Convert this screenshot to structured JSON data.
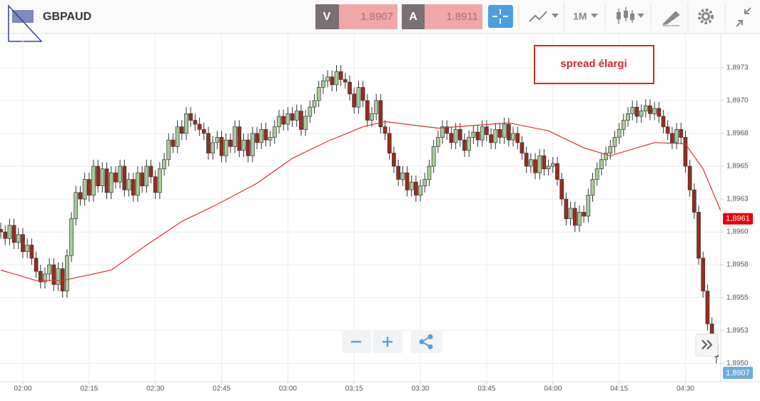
{
  "header": {
    "symbol": "GBPAUD",
    "bid_label": "V",
    "bid": "1.8907",
    "ask_label": "A",
    "ask": "1.8911",
    "timeframe": "1M"
  },
  "annotation": "spread élargi",
  "bid_tag_label": "1,8907",
  "chart_data": {
    "type": "candlestick",
    "x": [
      115,
      116,
      117,
      118,
      119,
      120,
      121,
      122,
      123,
      124,
      125,
      126,
      127,
      128,
      129,
      130,
      131,
      132,
      133,
      134,
      135,
      136,
      137,
      138,
      139,
      140,
      141,
      142,
      143,
      144,
      145,
      146,
      147,
      148,
      149,
      150,
      151,
      152,
      153,
      154,
      155,
      156,
      157,
      158,
      159,
      160,
      161,
      162,
      163,
      164,
      165,
      166,
      167,
      168,
      169,
      170,
      171,
      172,
      173,
      174,
      175,
      176,
      177,
      178,
      179,
      180,
      181,
      182,
      183,
      184,
      185,
      186,
      187,
      188,
      189,
      190,
      191,
      192,
      193,
      194,
      195,
      196,
      197,
      198,
      199,
      200,
      201,
      202,
      203,
      204,
      205,
      206,
      207,
      208,
      209,
      210,
      211,
      212,
      213,
      214,
      215,
      216,
      217,
      218,
      219,
      220,
      221,
      222,
      223,
      224,
      225,
      226,
      227,
      228,
      229,
      230,
      231,
      232,
      233,
      234,
      235,
      236,
      237,
      238,
      239,
      240,
      241,
      242,
      243,
      244,
      245,
      246,
      247,
      248,
      249,
      250,
      251,
      252,
      253,
      254,
      255,
      256,
      257,
      258,
      259,
      260,
      261,
      262,
      263,
      264,
      265,
      266,
      267,
      268,
      269,
      270,
      271,
      272,
      273,
      274,
      275,
      276,
      277
    ],
    "open": [
      1.89602,
      1.896,
      1.89595,
      1.89605,
      1.89592,
      1.89598,
      1.89585,
      1.8959,
      1.8958,
      1.8957,
      1.89562,
      1.89568,
      1.89575,
      1.8956,
      1.89572,
      1.89555,
      1.89582,
      1.8961,
      1.8963,
      1.89625,
      1.8964,
      1.89628,
      1.8965,
      1.89635,
      1.89648,
      1.8963,
      1.89645,
      1.89638,
      1.8965,
      1.89632,
      1.8964,
      1.89628,
      1.89645,
      1.89635,
      1.8965,
      1.89642,
      1.8963,
      1.89648,
      1.89655,
      1.8967,
      1.89665,
      1.8968,
      1.89675,
      1.8969,
      1.89685,
      1.89682,
      1.89678,
      1.89675,
      1.8966,
      1.89668,
      1.89672,
      1.89658,
      1.8967,
      1.89665,
      1.8968,
      1.89662,
      1.8967,
      1.89658,
      1.89675,
      1.89668,
      1.89678,
      1.8967,
      1.89672,
      1.8968,
      1.89688,
      1.89682,
      1.8969,
      1.89685,
      1.89692,
      1.89678,
      1.89688,
      1.89695,
      1.897,
      1.8971,
      1.89715,
      1.89718,
      1.89712,
      1.89722,
      1.89716,
      1.89714,
      1.89705,
      1.89695,
      1.8971,
      1.897,
      1.89685,
      1.8969,
      1.897,
      1.8968,
      1.89675,
      1.8966,
      1.8965,
      1.8964,
      1.89645,
      1.89632,
      1.89638,
      1.89628,
      1.89635,
      1.8964,
      1.8965,
      1.89665,
      1.89672,
      1.8968,
      1.89675,
      1.89668,
      1.89678,
      1.8967,
      1.89662,
      1.89672,
      1.89676,
      1.8967,
      1.8968,
      1.89674,
      1.89668,
      1.89678,
      1.89672,
      1.89682,
      1.8967,
      1.89675,
      1.89668,
      1.8966,
      1.8965,
      1.89655,
      1.89645,
      1.89658,
      1.89648,
      1.8965,
      1.89652,
      1.8964,
      1.89625,
      1.8961,
      1.89618,
      1.89605,
      1.89615,
      1.89612,
      1.89628,
      1.8964,
      1.89648,
      1.89655,
      1.8966,
      1.89665,
      1.89672,
      1.89678,
      1.89685,
      1.8969,
      1.89695,
      1.89688,
      1.89692,
      1.89696,
      1.8969,
      1.89694,
      1.89688,
      1.8968,
      1.89675,
      1.89668,
      1.89678,
      1.89672,
      1.8965,
      1.89632,
      1.89615,
      1.8958,
      1.89555,
      1.8953,
      1.89515
    ],
    "high": [
      1.89607,
      1.89605,
      1.8961,
      1.8961,
      1.89603,
      1.89603,
      1.89595,
      1.89595,
      1.89585,
      1.89575,
      1.89573,
      1.8958,
      1.8958,
      1.89577,
      1.89577,
      1.89587,
      1.89615,
      1.89635,
      1.89635,
      1.89645,
      1.89645,
      1.89655,
      1.89655,
      1.89653,
      1.89653,
      1.8965,
      1.8965,
      1.89655,
      1.89655,
      1.89645,
      1.89645,
      1.8965,
      1.8965,
      1.89655,
      1.89655,
      1.89647,
      1.89653,
      1.8966,
      1.89675,
      1.89675,
      1.89685,
      1.89685,
      1.89695,
      1.89695,
      1.8969,
      1.89687,
      1.89683,
      1.8968,
      1.89673,
      1.89677,
      1.89677,
      1.89675,
      1.89675,
      1.89685,
      1.89685,
      1.89675,
      1.89675,
      1.8968,
      1.8968,
      1.89683,
      1.89683,
      1.89677,
      1.89685,
      1.89693,
      1.89693,
      1.89695,
      1.89695,
      1.89697,
      1.89697,
      1.89693,
      1.897,
      1.89705,
      1.89715,
      1.8972,
      1.89723,
      1.89723,
      1.89727,
      1.89727,
      1.89721,
      1.89719,
      1.8971,
      1.89715,
      1.89715,
      1.89705,
      1.89695,
      1.89705,
      1.89705,
      1.89685,
      1.8968,
      1.89665,
      1.89655,
      1.8965,
      1.8965,
      1.89643,
      1.89643,
      1.8964,
      1.89645,
      1.89655,
      1.8967,
      1.89677,
      1.89685,
      1.89685,
      1.8968,
      1.89683,
      1.89683,
      1.89675,
      1.89677,
      1.89681,
      1.89681,
      1.89685,
      1.89685,
      1.89679,
      1.89683,
      1.89683,
      1.89687,
      1.89687,
      1.8968,
      1.8968,
      1.89673,
      1.89665,
      1.8966,
      1.8966,
      1.89663,
      1.89663,
      1.89655,
      1.89657,
      1.89657,
      1.89645,
      1.8963,
      1.89623,
      1.89623,
      1.8962,
      1.8962,
      1.89633,
      1.89645,
      1.89653,
      1.8966,
      1.89665,
      1.8967,
      1.89677,
      1.89683,
      1.8969,
      1.89695,
      1.897,
      1.897,
      1.89697,
      1.89701,
      1.89701,
      1.89699,
      1.89699,
      1.89693,
      1.89685,
      1.8968,
      1.89683,
      1.89683,
      1.89677,
      1.89655,
      1.89637,
      1.8962,
      1.89585,
      1.8956,
      1.89535,
      1.8952
    ],
    "low": [
      1.89595,
      1.8959,
      1.8959,
      1.89587,
      1.89587,
      1.8958,
      1.8958,
      1.89575,
      1.89565,
      1.89557,
      1.89557,
      1.89563,
      1.89555,
      1.89555,
      1.8955,
      1.8955,
      1.89577,
      1.89605,
      1.8962,
      1.8962,
      1.89623,
      1.89623,
      1.8963,
      1.8963,
      1.89625,
      1.89625,
      1.89633,
      1.89633,
      1.89627,
      1.89627,
      1.89623,
      1.89623,
      1.8963,
      1.8963,
      1.89637,
      1.89625,
      1.89625,
      1.89643,
      1.8965,
      1.8966,
      1.8966,
      1.8967,
      1.8967,
      1.8968,
      1.89677,
      1.89673,
      1.8967,
      1.89655,
      1.89655,
      1.89663,
      1.89653,
      1.89653,
      1.8966,
      1.8966,
      1.89657,
      1.89657,
      1.89653,
      1.89653,
      1.89663,
      1.89663,
      1.89665,
      1.89665,
      1.89667,
      1.89675,
      1.89677,
      1.89677,
      1.8968,
      1.8968,
      1.89673,
      1.89673,
      1.89683,
      1.8969,
      1.89695,
      1.89705,
      1.8971,
      1.89707,
      1.89707,
      1.89711,
      1.89709,
      1.897,
      1.8969,
      1.8969,
      1.89695,
      1.8968,
      1.8968,
      1.89685,
      1.89675,
      1.8967,
      1.89655,
      1.89645,
      1.89635,
      1.89635,
      1.89627,
      1.89627,
      1.89623,
      1.89623,
      1.8963,
      1.89635,
      1.89645,
      1.8966,
      1.89667,
      1.8967,
      1.89663,
      1.89663,
      1.89665,
      1.89657,
      1.89657,
      1.89667,
      1.89665,
      1.89665,
      1.89669,
      1.89663,
      1.89663,
      1.89667,
      1.89667,
      1.89665,
      1.89665,
      1.89663,
      1.89655,
      1.89645,
      1.89645,
      1.8964,
      1.8964,
      1.89643,
      1.89643,
      1.89645,
      1.89635,
      1.8962,
      1.89605,
      1.89605,
      1.896,
      1.896,
      1.89607,
      1.89607,
      1.89623,
      1.89635,
      1.89643,
      1.8965,
      1.89655,
      1.8966,
      1.89667,
      1.89673,
      1.8968,
      1.89685,
      1.89683,
      1.89683,
      1.89687,
      1.89685,
      1.89685,
      1.89683,
      1.89675,
      1.8967,
      1.89663,
      1.89663,
      1.89667,
      1.89645,
      1.89627,
      1.8961,
      1.89575,
      1.8955,
      1.89525,
      1.8951,
      1.895
    ],
    "close": [
      1.896,
      1.89595,
      1.89605,
      1.89592,
      1.89598,
      1.89585,
      1.8959,
      1.8958,
      1.8957,
      1.89562,
      1.89568,
      1.89575,
      1.8956,
      1.89572,
      1.89555,
      1.89582,
      1.8961,
      1.8963,
      1.89625,
      1.8964,
      1.89628,
      1.8965,
      1.89635,
      1.89648,
      1.8963,
      1.89645,
      1.89638,
      1.8965,
      1.89632,
      1.8964,
      1.89628,
      1.89645,
      1.89635,
      1.8965,
      1.89642,
      1.8963,
      1.89648,
      1.89655,
      1.8967,
      1.89665,
      1.8968,
      1.89675,
      1.8969,
      1.89685,
      1.89682,
      1.89678,
      1.89675,
      1.8966,
      1.89668,
      1.89672,
      1.89658,
      1.8967,
      1.89665,
      1.8968,
      1.89662,
      1.8967,
      1.89658,
      1.89675,
      1.89668,
      1.89678,
      1.8967,
      1.89672,
      1.8968,
      1.89688,
      1.89682,
      1.8969,
      1.89685,
      1.89692,
      1.89678,
      1.89688,
      1.89695,
      1.897,
      1.8971,
      1.89715,
      1.89718,
      1.89712,
      1.89722,
      1.89716,
      1.89714,
      1.89705,
      1.89695,
      1.8971,
      1.897,
      1.89685,
      1.8969,
      1.897,
      1.8968,
      1.89675,
      1.8966,
      1.8965,
      1.8964,
      1.89645,
      1.89632,
      1.89638,
      1.89628,
      1.89635,
      1.8964,
      1.8965,
      1.89665,
      1.89672,
      1.8968,
      1.89675,
      1.89668,
      1.89678,
      1.8967,
      1.89662,
      1.89672,
      1.89676,
      1.8967,
      1.8968,
      1.89674,
      1.89668,
      1.89678,
      1.89672,
      1.89682,
      1.8967,
      1.89675,
      1.89668,
      1.8966,
      1.8965,
      1.89655,
      1.89645,
      1.89658,
      1.89648,
      1.8965,
      1.89652,
      1.8964,
      1.89625,
      1.8961,
      1.89618,
      1.89605,
      1.89615,
      1.89612,
      1.89628,
      1.8964,
      1.89648,
      1.89655,
      1.8966,
      1.89665,
      1.89672,
      1.89678,
      1.89685,
      1.8969,
      1.89695,
      1.89688,
      1.89692,
      1.89696,
      1.8969,
      1.89694,
      1.89688,
      1.8968,
      1.89675,
      1.89668,
      1.89678,
      1.89672,
      1.8965,
      1.89632,
      1.89615,
      1.8958,
      1.89555,
      1.8953,
      1.89515,
      1.89505
    ],
    "up_color": "#a8cc98",
    "down_color": "#9a2b1c",
    "moving_average": {
      "color": "#d9312b",
      "x": [
        115,
        123,
        129,
        140,
        148,
        156,
        164,
        173,
        181,
        189,
        197,
        202,
        214,
        222,
        230,
        239,
        247,
        253,
        263,
        270,
        274,
        278
      ],
      "values": [
        1.89571,
        1.89563,
        1.89563,
        1.89571,
        1.8959,
        1.89608,
        1.89621,
        1.89637,
        1.89656,
        1.89669,
        1.8968,
        1.89684,
        1.89679,
        1.89681,
        1.89683,
        1.89677,
        1.89664,
        1.89658,
        1.89668,
        1.89667,
        1.89648,
        1.89616
      ]
    },
    "xlim": [
      114.83,
      278
    ],
    "xticks": [
      {
        "value": 120,
        "label": "02:00"
      },
      {
        "value": 135,
        "label": "02:15"
      },
      {
        "value": 150,
        "label": "02:30"
      },
      {
        "value": 165,
        "label": "02:45"
      },
      {
        "value": 180,
        "label": "03:00"
      },
      {
        "value": 195,
        "label": "03:15"
      },
      {
        "value": 210,
        "label": "03:30"
      },
      {
        "value": 225,
        "label": "03:45"
      },
      {
        "value": 240,
        "label": "04:00"
      },
      {
        "value": 255,
        "label": "04:15"
      },
      {
        "value": 270,
        "label": "04:30"
      }
    ],
    "ylim": [
      1.89486,
      1.89751
    ],
    "yticks": [
      {
        "value": 1.895,
        "label": "1,8950"
      },
      {
        "value": 1.89525,
        "label": "1,8953"
      },
      {
        "value": 1.8955,
        "label": "1,8955"
      },
      {
        "value": 1.89575,
        "label": "1,8958"
      },
      {
        "value": 1.896,
        "label": "1,8960"
      },
      {
        "value": 1.89625,
        "label": "1,8963"
      },
      {
        "value": 1.8965,
        "label": "1,8965"
      },
      {
        "value": 1.89675,
        "label": "1,8968"
      },
      {
        "value": 1.897,
        "label": "1,8970"
      },
      {
        "value": 1.89725,
        "label": "1,8973"
      }
    ],
    "price_tag": {
      "value": 1.8961,
      "label": "1,8961",
      "color": "#e8000b"
    },
    "grid": true
  }
}
